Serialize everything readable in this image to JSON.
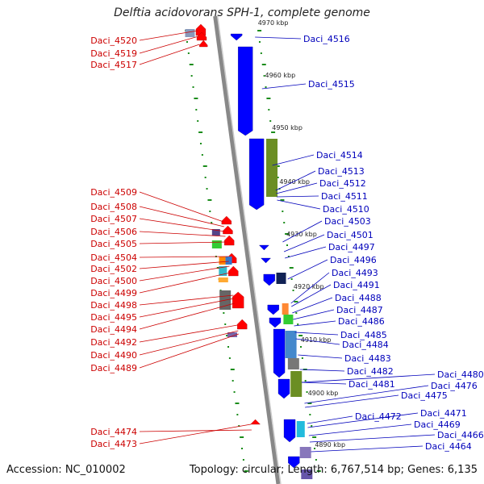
{
  "title": "Delftia acidovorans SPH-1, complete genome",
  "footer": {
    "accession": "Accession: NC_010002",
    "summary": "Topology: circular; Length: 6,767,514 bp; Genes: 6,135"
  },
  "colors": {
    "forward_strand": "#ff0000",
    "reverse_strand": "#0000ff",
    "backbone": "#888888",
    "left_label": "#cc0000",
    "right_label": "#0000bb",
    "tick": "#1a8c1a"
  },
  "scale_labels": [
    "4970 kbp",
    "4960 kbp",
    "4950 kbp",
    "4940 kbp",
    "4930 kbp",
    "4920 kbp",
    "4910 kbp",
    "4900 kbp",
    "4890 kbp"
  ],
  "left_labels": [
    "Daci_4520",
    "Daci_4519",
    "Daci_4517",
    "Daci_4509",
    "Daci_4508",
    "Daci_4507",
    "Daci_4506",
    "Daci_4505",
    "Daci_4504",
    "Daci_4502",
    "Daci_4500",
    "Daci_4499",
    "Daci_4498",
    "Daci_4495",
    "Daci_4494",
    "Daci_4492",
    "Daci_4490",
    "Daci_4489",
    "Daci_4474",
    "Daci_4473"
  ],
  "right_labels": [
    "Daci_4516",
    "Daci_4515",
    "Daci_4514",
    "Daci_4513",
    "Daci_4512",
    "Daci_4511",
    "Daci_4510",
    "Daci_4503",
    "Daci_4501",
    "Daci_4497",
    "Daci_4496",
    "Daci_4493",
    "Daci_4491",
    "Daci_4488",
    "Daci_4487",
    "Daci_4486",
    "Daci_4485",
    "Daci_4484",
    "Daci_4483",
    "Daci_4482",
    "Daci_4481",
    "Daci_4480",
    "Daci_4476",
    "Daci_4475",
    "Daci_4472",
    "Daci_4471",
    "Daci_4469",
    "Daci_4466",
    "Daci_4464"
  ]
}
